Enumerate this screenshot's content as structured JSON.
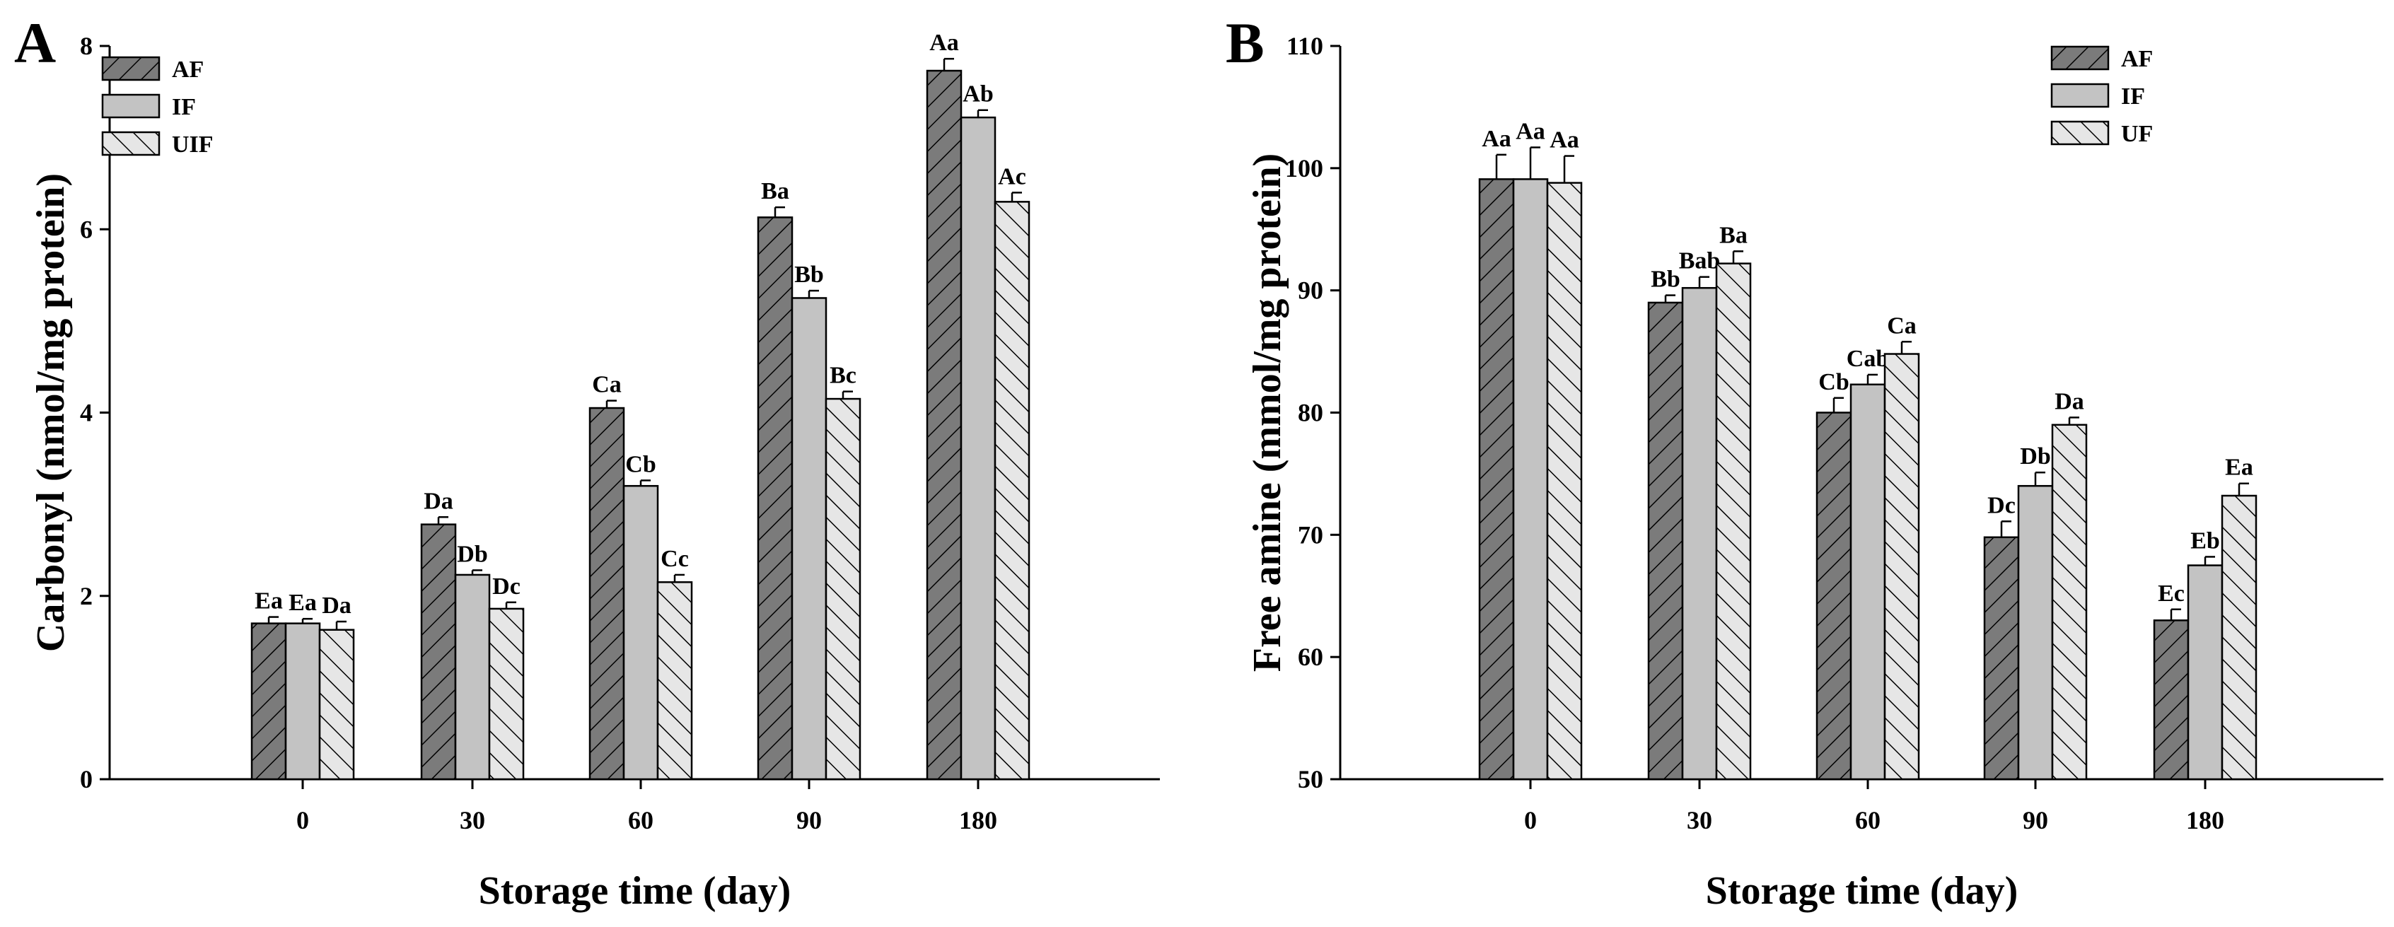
{
  "chart_data": [
    {
      "type": "bar",
      "panel": "A",
      "title": "",
      "xlabel": "Storage time (day)",
      "ylabel": "Carbonyl (nmol/mg protein)",
      "ylim": [
        0,
        8
      ],
      "yticks": [
        "0",
        "2",
        "4",
        "6",
        "8"
      ],
      "categories": [
        "0",
        "30",
        "60",
        "90",
        "180"
      ],
      "legend_position": "top-left",
      "grid": false,
      "series": [
        {
          "name": "AF",
          "style": "dark-hatch",
          "values": [
            1.7,
            2.78,
            4.05,
            6.13,
            7.73
          ],
          "errors": [
            0.07,
            0.08,
            0.08,
            0.11,
            0.13
          ],
          "labels": [
            "Ea",
            "Da",
            "Ca",
            "Ba",
            "Aa"
          ]
        },
        {
          "name": "IF",
          "style": "light-solid",
          "values": [
            1.7,
            2.23,
            3.2,
            5.25,
            7.22
          ],
          "errors": [
            0.05,
            0.05,
            0.06,
            0.08,
            0.08
          ],
          "labels": [
            "Ea",
            "Db",
            "Cb",
            "Bb",
            "Ab"
          ]
        },
        {
          "name": "UIF",
          "style": "white-hatch",
          "values": [
            1.63,
            1.86,
            2.15,
            4.15,
            6.3
          ],
          "errors": [
            0.09,
            0.07,
            0.08,
            0.08,
            0.1
          ],
          "labels": [
            "Da",
            "Dc",
            "Cc",
            "Bc",
            "Ac"
          ]
        }
      ]
    },
    {
      "type": "bar",
      "panel": "B",
      "title": "",
      "xlabel": "Storage time (day)",
      "ylabel": "Free amine (mmol/mg protein)",
      "ylim": [
        50,
        110
      ],
      "yticks": [
        "50",
        "60",
        "70",
        "80",
        "90",
        "100",
        "110"
      ],
      "categories": [
        "0",
        "30",
        "60",
        "90",
        "180"
      ],
      "legend_position": "top-right",
      "grid": false,
      "series": [
        {
          "name": "AF",
          "style": "dark-hatch",
          "values": [
            99.1,
            89.0,
            80.0,
            69.8,
            63.0
          ],
          "errors": [
            2.0,
            0.6,
            1.2,
            1.3,
            0.9
          ],
          "labels": [
            "Aa",
            "Bb",
            "Cb",
            "Dc",
            "Ec"
          ]
        },
        {
          "name": "IF",
          "style": "light-solid",
          "values": [
            99.1,
            90.2,
            82.3,
            74.0,
            67.5
          ],
          "errors": [
            2.6,
            0.9,
            0.8,
            1.1,
            0.7
          ],
          "labels": [
            "Aa",
            "Bab",
            "Cab",
            "Db",
            "Eb"
          ]
        },
        {
          "name": "UF",
          "style": "white-hatch",
          "values": [
            98.8,
            92.2,
            84.8,
            79.0,
            73.2
          ],
          "errors": [
            2.2,
            1.0,
            1.0,
            0.6,
            1.0
          ],
          "labels": [
            "Aa",
            "Ba",
            "Ca",
            "Da",
            "Ea"
          ]
        }
      ]
    }
  ]
}
